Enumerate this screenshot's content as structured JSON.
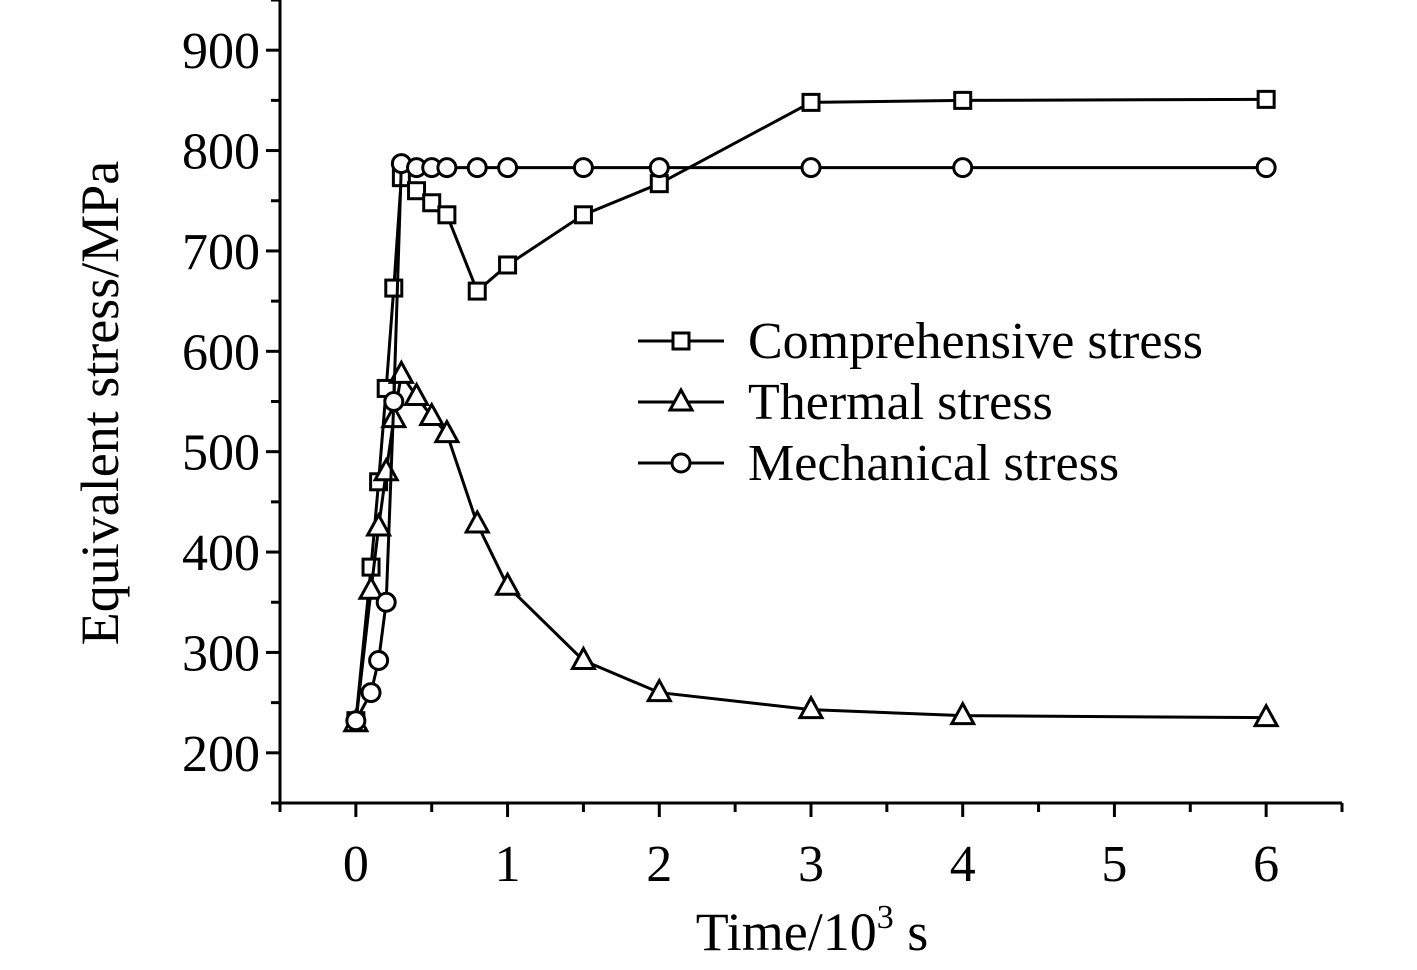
{
  "chart_data": {
    "type": "line",
    "xlabel": "Time/10",
    "xlabel_sup": "3",
    "xlabel_unit": " s",
    "ylabel": "Equivalent stress/MPa",
    "xlim": [
      -0.5,
      6.5
    ],
    "ylim": [
      150,
      950
    ],
    "x_ticks": [
      0,
      1,
      2,
      3,
      4,
      5,
      6
    ],
    "y_ticks": [
      200,
      300,
      400,
      500,
      600,
      700,
      800,
      900
    ],
    "legend_position": "center-right",
    "grid": false,
    "series": [
      {
        "name": "Comprehensive stress",
        "marker": "square",
        "x": [
          0,
          0.1,
          0.15,
          0.2,
          0.25,
          0.3,
          0.4,
          0.5,
          0.6,
          0.8,
          1,
          1.5,
          2,
          3,
          4,
          6
        ],
        "values": [
          232,
          385,
          470,
          563,
          663,
          773,
          760,
          748,
          736,
          660,
          686,
          736,
          767,
          848,
          850,
          851
        ]
      },
      {
        "name": "Thermal stress",
        "marker": "triangle",
        "x": [
          0,
          0.1,
          0.15,
          0.2,
          0.25,
          0.3,
          0.4,
          0.5,
          0.6,
          0.8,
          1,
          1.5,
          2,
          3,
          4,
          6
        ],
        "values": [
          230,
          362,
          425,
          480,
          533,
          577,
          555,
          535,
          518,
          428,
          366,
          292,
          260,
          243,
          237,
          235
        ]
      },
      {
        "name": "Mechanical stress",
        "marker": "circle",
        "x": [
          0,
          0.1,
          0.15,
          0.2,
          0.25,
          0.3,
          0.4,
          0.5,
          0.6,
          0.8,
          1,
          1.5,
          2,
          3,
          4,
          6
        ],
        "values": [
          232,
          260,
          292,
          350,
          550,
          787,
          783,
          783,
          783,
          783,
          783,
          783,
          783,
          783,
          783,
          783
        ]
      }
    ]
  }
}
